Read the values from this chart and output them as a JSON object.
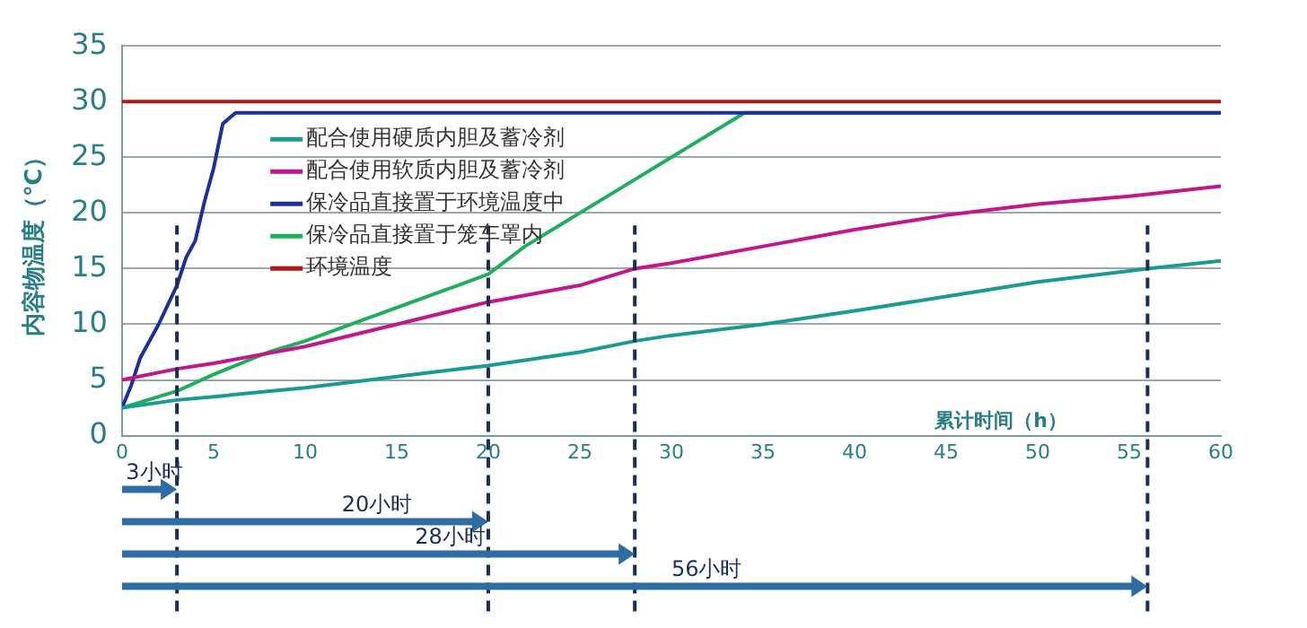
{
  "chart_data": {
    "type": "line",
    "xlabel": "累计时间（h）",
    "ylabel": "内容物温度（℃）",
    "xlim": [
      0,
      60
    ],
    "xticks": [
      0,
      5,
      10,
      15,
      20,
      25,
      30,
      35,
      40,
      45,
      50,
      55,
      60
    ],
    "ylim": [
      0,
      35
    ],
    "yticks": [
      0,
      5,
      10,
      15,
      20,
      25,
      30,
      35
    ],
    "grid": "y",
    "legend": "top left",
    "marker": "none",
    "line_style": "solid",
    "series": [
      {
        "name": "配合使用硬质内胆及蓄冷剂",
        "color": "#1a9a94",
        "x": [
          0,
          3,
          5,
          10,
          15,
          20,
          25,
          28,
          30,
          35,
          40,
          45,
          50,
          55,
          56,
          60
        ],
        "values": [
          2.5,
          3.2,
          3.5,
          4.3,
          5.3,
          6.3,
          7.5,
          8.5,
          9,
          10,
          11.2,
          12.5,
          13.8,
          14.8,
          15,
          15.7
        ]
      },
      {
        "name": "配合使用软质内胆及蓄冷剂",
        "color": "#c4168c",
        "x": [
          0,
          3,
          5,
          10,
          15,
          20,
          25,
          28,
          30,
          35,
          40,
          45,
          50,
          55,
          60
        ],
        "values": [
          5,
          6,
          6.5,
          8,
          10,
          12,
          13.5,
          15,
          15.5,
          17,
          18.5,
          19.8,
          20.8,
          21.5,
          22.4
        ]
      },
      {
        "name": "保冷品直接置于环境温度中",
        "color": "#1a2fa0",
        "x": [
          0,
          0.5,
          1,
          2,
          3,
          3.5,
          4,
          4.5,
          5,
          5.5,
          6.2,
          60
        ],
        "values": [
          2.5,
          4.5,
          7,
          10,
          13.5,
          16,
          17.5,
          21,
          24,
          28,
          29,
          29
        ]
      },
      {
        "name": "保冷品直接置于笼车罩内",
        "color": "#1fae5a",
        "x": [
          0,
          3,
          5,
          8,
          10,
          15,
          20,
          22,
          25,
          28,
          30,
          32,
          34,
          60
        ],
        "values": [
          2.5,
          4,
          5.5,
          7.5,
          8.5,
          11.5,
          14.5,
          17,
          20,
          23,
          25,
          27,
          29,
          29
        ]
      },
      {
        "name": "环境温度",
        "color": "#b01818",
        "x": [
          0,
          60
        ],
        "values": [
          30,
          30
        ]
      }
    ],
    "ref_lines": [
      {
        "axis": "x",
        "value": 3,
        "label": "3小时",
        "color": "#1a2e5a",
        "line_style": "dashed"
      },
      {
        "axis": "x",
        "value": 20,
        "label": "20小时",
        "color": "#1a2e5a",
        "line_style": "dashed"
      },
      {
        "axis": "x",
        "value": 28,
        "label": "28小时",
        "color": "#1a2e5a",
        "line_style": "dashed"
      },
      {
        "axis": "x",
        "value": 56,
        "label": "56小时",
        "color": "#1a2e5a",
        "line_style": "dashed"
      }
    ]
  }
}
